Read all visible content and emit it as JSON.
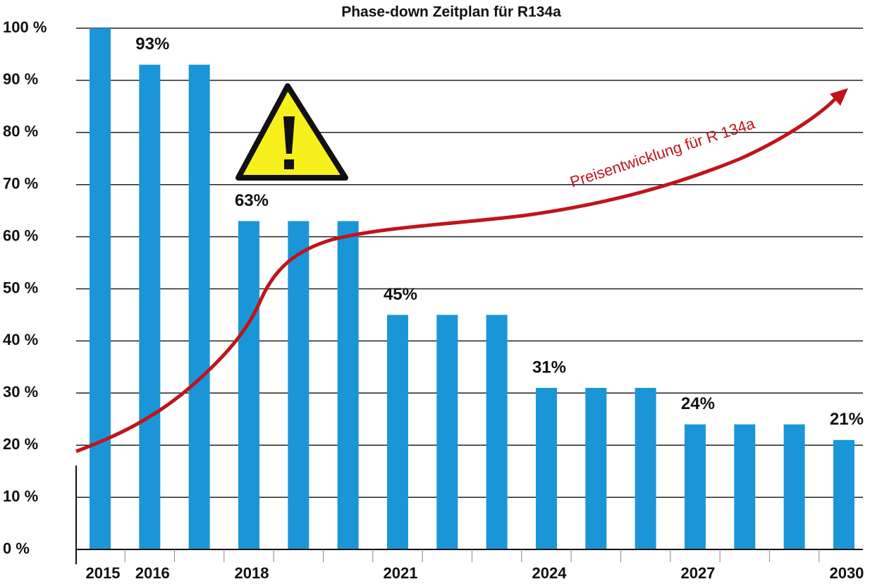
{
  "chart_data": {
    "type": "bar",
    "title": "Phase-down Zeitplan für R134a",
    "categories": [
      "2015",
      "2016",
      null,
      "2018",
      null,
      null,
      "2021",
      null,
      null,
      "2024",
      null,
      null,
      "2027",
      null,
      null,
      "2030"
    ],
    "values": [
      100,
      93,
      93,
      63,
      63,
      63,
      45,
      45,
      45,
      31,
      31,
      31,
      24,
      24,
      24,
      21
    ],
    "value_labels": [
      null,
      "93%",
      null,
      "63%",
      null,
      null,
      "45%",
      null,
      null,
      "31%",
      null,
      null,
      "24%",
      null,
      null,
      "21%"
    ],
    "color": "#1a96d8",
    "ylim": [
      0,
      100
    ],
    "yticks": [
      {
        "value": 0,
        "label": "0 %"
      },
      {
        "value": 10,
        "label": "10 %"
      },
      {
        "value": 20,
        "label": "20 %"
      },
      {
        "value": 30,
        "label": "30 %"
      },
      {
        "value": 40,
        "label": "40 %"
      },
      {
        "value": 50,
        "label": "50 %"
      },
      {
        "value": 60,
        "label": "60 %"
      },
      {
        "value": 70,
        "label": "70 %"
      },
      {
        "value": 80,
        "label": "80 %"
      },
      {
        "value": 90,
        "label": "90 %"
      },
      {
        "value": 100,
        "label": "100 %"
      }
    ],
    "grid": true,
    "annotation": "Preisentwicklung für R 134a"
  }
}
